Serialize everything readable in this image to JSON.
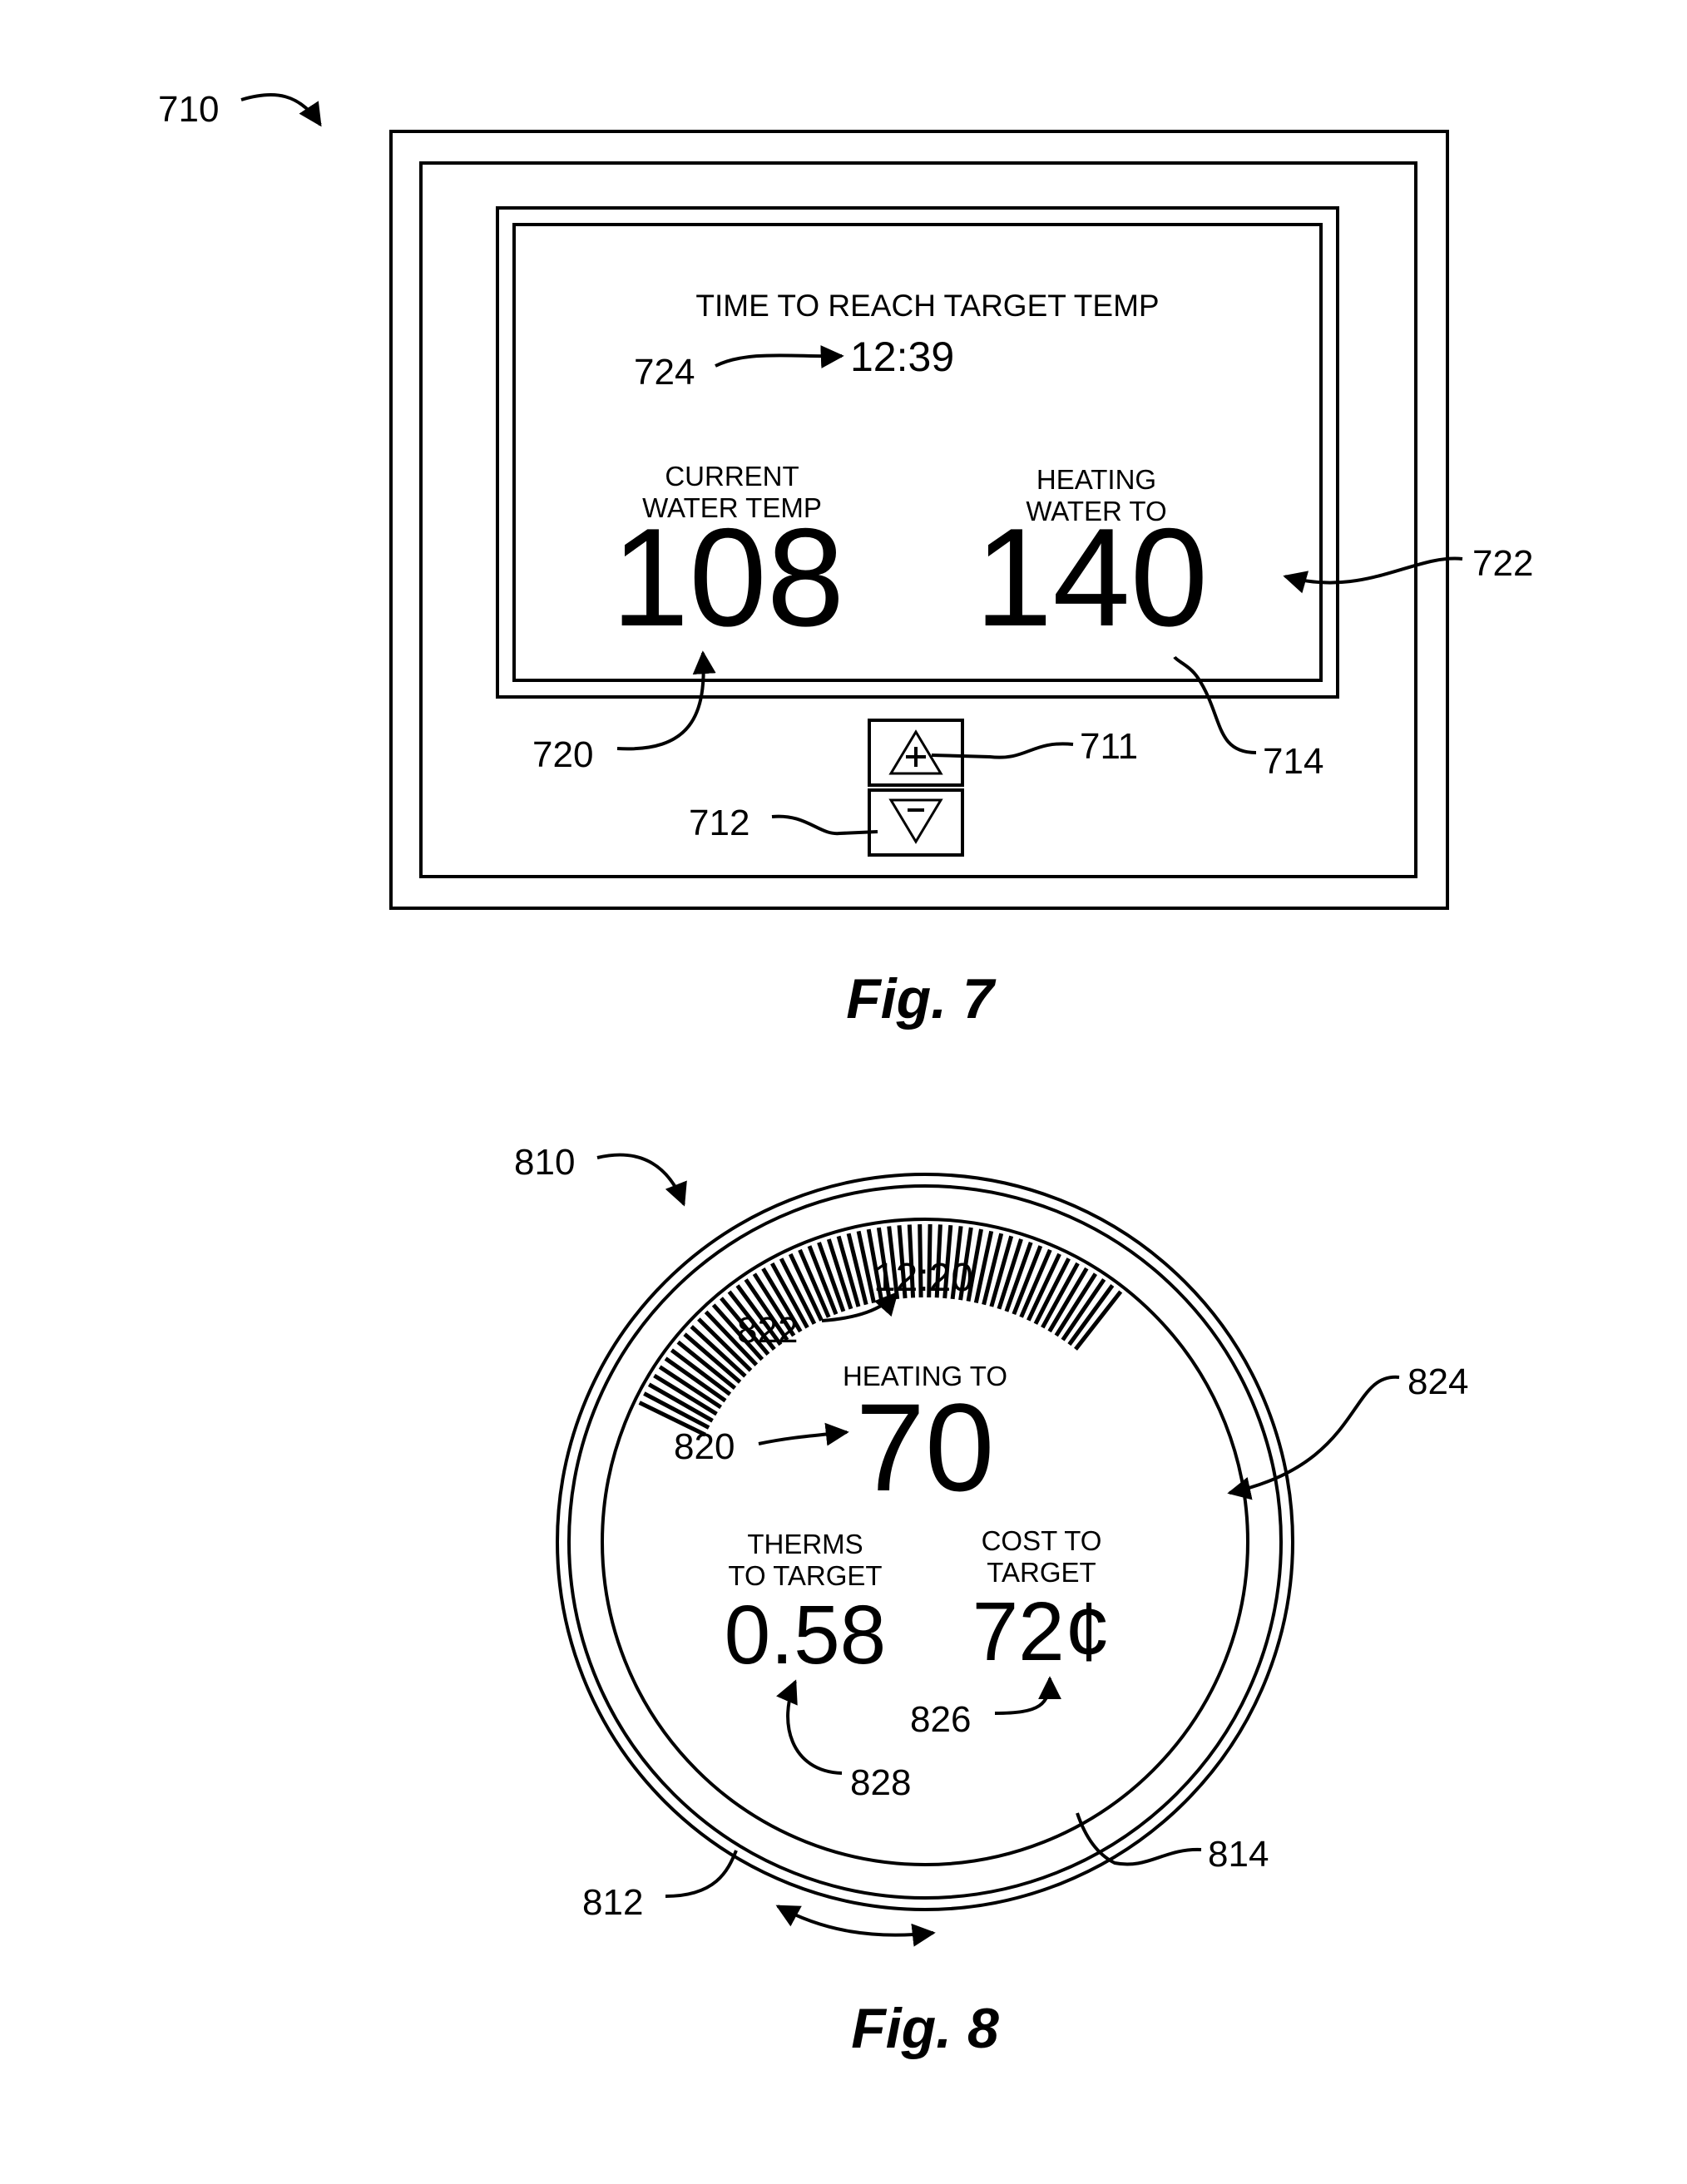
{
  "fig7": {
    "device_ref": "710",
    "title_line": "TIME TO REACH TARGET TEMP",
    "time_ref": "724",
    "time_value": "12:39",
    "current_label_1": "CURRENT",
    "current_label_2": "WATER TEMP",
    "current_value": "108",
    "current_ref": "720",
    "heating_label_1": "HEATING",
    "heating_label_2": "WATER TO",
    "heating_value": "140",
    "heating_ref": "722",
    "screen_ref": "714",
    "up_button_ref": "711",
    "down_button_ref": "712",
    "up_icon": "plus-triangle-icon",
    "down_icon": "minus-triangle-icon",
    "caption": "Fig. 7"
  },
  "fig8": {
    "device_ref": "810",
    "time_value": "12:20",
    "time_ref": "822",
    "heating_label": "HEATING TO",
    "heating_value": "70",
    "heating_ref": "820",
    "therms_label_1": "THERMS",
    "therms_label_2": "TO TARGET",
    "therms_value": "0.58",
    "therms_ref": "828",
    "cost_label_1": "COST TO",
    "cost_label_2": "TARGET",
    "cost_value": "72¢",
    "cost_ref": "826",
    "arc_ref": "824",
    "ring_ref": "812",
    "inner_ref": "814",
    "caption": "Fig. 8"
  }
}
